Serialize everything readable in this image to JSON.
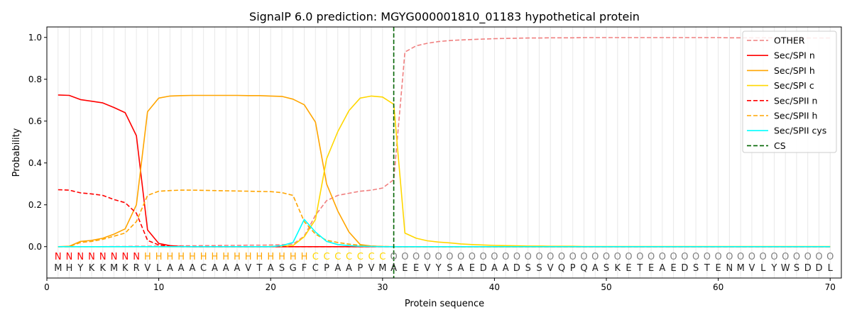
{
  "chart_data": {
    "type": "line",
    "title": "SignalP 6.0 prediction: MGYG000001810_01183 hypothetical protein",
    "xlabel": "Protein sequence",
    "ylabel": "Probability",
    "xlim": [
      0,
      71
    ],
    "ylim": [
      -0.15,
      1.05
    ],
    "xticks": [
      "0",
      "10",
      "20",
      "30",
      "40",
      "50",
      "60",
      "70"
    ],
    "yticks": [
      "0.0",
      "0.2",
      "0.4",
      "0.6",
      "0.8",
      "1.0"
    ],
    "legend_position": "top-right",
    "sequence": "MHYKKMKRVLAAACAAAVTASGFCPAAPVMAEEVYSAEDAADSSVQPQASKETEAEDSTENMVLYWSDDL",
    "labels": "NNNNNNNNHHHHHHHHHHHHHHHCCCCCCCOOOOOOOOOOOOOOOOOOOOOOOOOOOOOOOOOOOOOOOO",
    "label_colors": {
      "N": "#ff0000",
      "H": "#ffa500",
      "C": "#ffd700",
      "O": "#808080"
    },
    "cleavage_site": 31,
    "cs_label": "CS",
    "cs_color": "#006400",
    "series": [
      {
        "name": "OTHER",
        "color": "#f08080",
        "dash": true,
        "values": [
          0,
          0,
          0,
          0,
          0,
          0.001,
          0.001,
          0.002,
          0.002,
          0.003,
          0.003,
          0.004,
          0.004,
          0.005,
          0.005,
          0.006,
          0.006,
          0.007,
          0.007,
          0.008,
          0.009,
          0.012,
          0.05,
          0.15,
          0.22,
          0.245,
          0.255,
          0.265,
          0.27,
          0.28,
          0.32,
          0.93,
          0.96,
          0.972,
          0.98,
          0.985,
          0.988,
          0.99,
          0.992,
          0.994,
          0.995,
          0.996,
          0.997,
          0.997,
          0.998,
          0.998,
          0.998,
          0.999,
          0.999,
          0.999,
          0.999,
          0.999,
          0.999,
          0.999,
          0.999,
          0.999,
          0.999,
          0.999,
          0.999,
          0.999,
          0.998,
          0.998,
          0.998,
          0.998,
          0.998,
          0.998,
          0.997,
          0.997,
          0.997,
          0.997
        ]
      },
      {
        "name": "Sec/SPI n",
        "color": "#ff0000",
        "dash": false,
        "values": [
          0.725,
          0.723,
          0.703,
          0.695,
          0.687,
          0.665,
          0.64,
          0.53,
          0.08,
          0.015,
          0.005,
          0.001,
          0,
          0,
          0,
          0,
          0,
          0,
          0,
          0,
          0,
          0,
          0,
          0,
          0,
          0,
          0,
          0,
          0,
          0,
          0,
          0,
          0,
          0,
          0,
          0,
          0,
          0,
          0,
          0,
          0,
          0,
          0,
          0,
          0,
          0,
          0,
          0,
          0,
          0,
          0,
          0,
          0,
          0,
          0,
          0,
          0,
          0,
          0,
          0,
          0,
          0,
          0,
          0,
          0,
          0,
          0,
          0,
          0,
          0
        ]
      },
      {
        "name": "Sec/SPI h",
        "color": "#ffa500",
        "dash": false,
        "values": [
          0,
          0.002,
          0.025,
          0.03,
          0.04,
          0.06,
          0.085,
          0.2,
          0.645,
          0.71,
          0.72,
          0.722,
          0.723,
          0.723,
          0.723,
          0.723,
          0.723,
          0.722,
          0.722,
          0.72,
          0.718,
          0.705,
          0.678,
          0.595,
          0.3,
          0.17,
          0.07,
          0.01,
          0.003,
          0.001,
          0,
          0,
          0,
          0,
          0,
          0,
          0,
          0,
          0,
          0,
          0,
          0,
          0,
          0,
          0,
          0,
          0,
          0,
          0,
          0,
          0,
          0,
          0,
          0,
          0,
          0,
          0,
          0,
          0,
          0,
          0,
          0,
          0,
          0,
          0,
          0,
          0,
          0,
          0,
          0
        ]
      },
      {
        "name": "Sec/SPI c",
        "color": "#ffd700",
        "dash": false,
        "values": [
          0,
          0,
          0,
          0,
          0,
          0,
          0,
          0,
          0,
          0,
          0,
          0,
          0,
          0,
          0,
          0,
          0,
          0,
          0,
          0.001,
          0.002,
          0.005,
          0.047,
          0.13,
          0.42,
          0.55,
          0.65,
          0.71,
          0.72,
          0.715,
          0.68,
          0.065,
          0.04,
          0.028,
          0.022,
          0.018,
          0.013,
          0.01,
          0.008,
          0.006,
          0.005,
          0.004,
          0.003,
          0.003,
          0.002,
          0.002,
          0.002,
          0.001,
          0.001,
          0.001,
          0.001,
          0.001,
          0.001,
          0.001,
          0.001,
          0.001,
          0.001,
          0.001,
          0.001,
          0.001,
          0.001,
          0.001,
          0.001,
          0.001,
          0.001,
          0.001,
          0.001,
          0.001,
          0.001,
          0.001
        ]
      },
      {
        "name": "Sec/SPII n",
        "color": "#ff0000",
        "dash": true,
        "values": [
          0.272,
          0.27,
          0.257,
          0.252,
          0.245,
          0.225,
          0.21,
          0.16,
          0.03,
          0.008,
          0.002,
          0,
          0,
          0,
          0,
          0,
          0,
          0,
          0,
          0,
          0,
          0,
          0,
          0,
          0,
          0,
          0,
          0,
          0,
          0,
          0,
          0,
          0,
          0,
          0,
          0,
          0,
          0,
          0,
          0,
          0,
          0,
          0,
          0,
          0,
          0,
          0,
          0,
          0,
          0,
          0,
          0,
          0,
          0,
          0,
          0,
          0,
          0,
          0,
          0,
          0,
          0,
          0,
          0,
          0,
          0,
          0,
          0,
          0,
          0
        ]
      },
      {
        "name": "Sec/SPII h",
        "color": "#ffa500",
        "dash": true,
        "values": [
          0,
          0,
          0.02,
          0.025,
          0.035,
          0.05,
          0.065,
          0.12,
          0.245,
          0.265,
          0.268,
          0.27,
          0.27,
          0.269,
          0.268,
          0.267,
          0.266,
          0.265,
          0.264,
          0.263,
          0.258,
          0.245,
          0.12,
          0.06,
          0.03,
          0.02,
          0.012,
          0.006,
          0.003,
          0.001,
          0,
          0,
          0,
          0,
          0,
          0,
          0,
          0,
          0,
          0,
          0,
          0,
          0,
          0,
          0,
          0,
          0,
          0,
          0,
          0,
          0,
          0,
          0,
          0,
          0,
          0,
          0,
          0,
          0,
          0,
          0,
          0,
          0,
          0,
          0,
          0,
          0,
          0,
          0,
          0
        ]
      },
      {
        "name": "Sec/SPII cys",
        "color": "#00ffff",
        "dash": false,
        "values": [
          0,
          0,
          0,
          0,
          0,
          0,
          0,
          0,
          0,
          0,
          0,
          0,
          0,
          0,
          0,
          0,
          0,
          0,
          0,
          0,
          0.005,
          0.02,
          0.13,
          0.07,
          0.025,
          0.01,
          0.005,
          0.002,
          0.001,
          0,
          0,
          0,
          0,
          0,
          0,
          0,
          0,
          0,
          0,
          0,
          0,
          0,
          0,
          0,
          0,
          0,
          0,
          0,
          0,
          0,
          0,
          0,
          0,
          0,
          0,
          0,
          0,
          0,
          0,
          0,
          0,
          0,
          0,
          0,
          0,
          0,
          0,
          0,
          0,
          0
        ]
      }
    ]
  }
}
